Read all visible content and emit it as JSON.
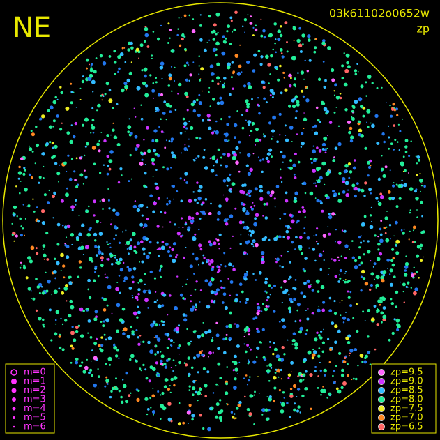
{
  "header": {
    "title": "NE",
    "image_id": "03k61102o0652w",
    "subtitle": "zp"
  },
  "magnitude_legend": {
    "items": [
      "m=0",
      "m=1",
      "m=2",
      "m=3",
      "m=4",
      "m=5",
      "m=6"
    ]
  },
  "zp_legend": {
    "items": [
      {
        "label": "zp=9.5",
        "color": "#ff66ff"
      },
      {
        "label": "zp=9.0",
        "color": "#cc33ff"
      },
      {
        "label": "zp=8.5",
        "color": "#33bbff"
      },
      {
        "label": "zp=8.0",
        "color": "#22ee99"
      },
      {
        "label": "zp=7.5",
        "color": "#eeee22"
      },
      {
        "label": "zp=7.0",
        "color": "#ff8822"
      },
      {
        "label": "zp=6.5",
        "color": "#ff6666"
      }
    ]
  }
}
